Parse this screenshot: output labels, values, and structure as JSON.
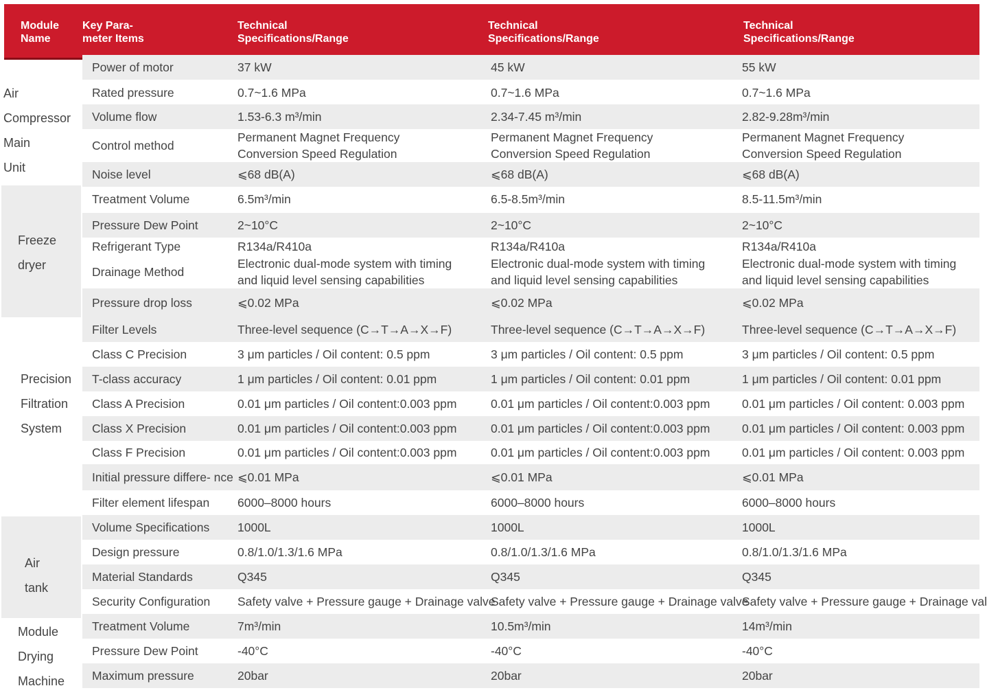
{
  "header": {
    "module": "Module\nName",
    "param": "Key Para-\nmeter Items",
    "spec1": "Technical\nSpecifications/Range",
    "spec2": "Technical\nSpecifications/Range",
    "spec3": "Technical\nSpecifications/Range"
  },
  "modules": [
    {
      "name": "Air\nCompressor\nMain\nUnit"
    },
    {
      "name": "Freeze\ndryer"
    },
    {
      "name": "Precision\nFiltration\nSystem"
    },
    {
      "name": "Air\ntank"
    },
    {
      "name": "Module\nDrying\nMachine"
    }
  ],
  "rows": [
    {
      "param": "Power of motor",
      "v1": "37 kW",
      "v2": "45 kW",
      "v3": "55 kW"
    },
    {
      "param": "Rated pressure",
      "v1": "0.7~1.6 MPa",
      "v2": "0.7~1.6 MPa",
      "v3": "0.7~1.6 MPa"
    },
    {
      "param": "Volume flow",
      "v1": "1.53-6.3 m³/min",
      "v2": "2.34-7.45 m³/min",
      "v3": "2.82-9.28m³/min"
    },
    {
      "param": "Control method",
      "v1": "Permanent Magnet Frequency\nConversion Speed Regulation",
      "v2": "Permanent Magnet Frequency\nConversion Speed Regulation",
      "v3": "Permanent Magnet Frequency\nConversion Speed Regulation"
    },
    {
      "param": "Noise level",
      "v1": "⩽68 dB(A)",
      "v2": "⩽68 dB(A)",
      "v3": "⩽68 dB(A)"
    },
    {
      "param": "Treatment Volume",
      "v1": "6.5m³/min",
      "v2": "6.5-8.5m³/min",
      "v3": "8.5-11.5m³/min"
    },
    {
      "param": "Pressure Dew Point",
      "v1": "2~10°C",
      "v2": "2~10°C",
      "v3": "2~10°C"
    },
    {
      "param": "Refrigerant Type",
      "v1": "R134a/R410a",
      "v2": "R134a/R410a",
      "v3": "R134a/R410a"
    },
    {
      "param": "Drainage Method",
      "v1": "Electronic dual-mode system with timing\nand liquid level sensing capabilities",
      "v2": "Electronic dual-mode system with timing\nand liquid level sensing capabilities",
      "v3": "Electronic dual-mode system with timing\nand liquid level sensing capabilities"
    },
    {
      "param": "Pressure drop loss",
      "v1": "⩽0.02 MPa",
      "v2": "⩽0.02 MPa",
      "v3": "⩽0.02 MPa"
    },
    {
      "param": "Filter Levels",
      "v1": "Three-level sequence (C→T→A→X→F)",
      "v2": "Three-level sequence (C→T→A→X→F)",
      "v3": "Three-level sequence (C→T→A→X→F)"
    },
    {
      "param": "Class C Precision",
      "v1": "3 μm particles / Oil content: 0.5 ppm",
      "v2": "3 μm particles / Oil content: 0.5 ppm",
      "v3": "3 μm particles / Oil content: 0.5 ppm"
    },
    {
      "param": "T-class accuracy",
      "v1": "1 μm particles / Oil content: 0.01 ppm",
      "v2": "1 μm particles / Oil content: 0.01 ppm",
      "v3": "1 μm particles / Oil content: 0.01 ppm"
    },
    {
      "param": "Class A Precision",
      "v1": "0.01  μm  particles  /  Oil  content:0.003 ppm",
      "v2": "0.01  μm  particles  /  Oil  content:0.003 ppm",
      "v3": "0.01 μm particles / Oil content: 0.003 ppm"
    },
    {
      "param": "Class X Precision",
      "v1": "0.01  μm  particles  /  Oil  content:0.003 ppm",
      "v2": "0.01  μm  particles  /  Oil  content:0.003 ppm",
      "v3": "0.01 μm particles / Oil content: 0.003 ppm"
    },
    {
      "param": "Class F Precision",
      "v1": "0.01  μm  particles  /  Oil  content:0.003 ppm",
      "v2": "0.01  μm  particles  /  Oil  content:0.003 ppm",
      "v3": "0.01 μm particles / Oil content: 0.003 ppm"
    },
    {
      "param": "Initial pressure differe- nce",
      "v1": "⩽0.01 MPa",
      "v2": "⩽0.01 MPa",
      "v3": "⩽0.01 MPa"
    },
    {
      "param": "Filter element lifespan",
      "v1": "6000–8000 hours",
      "v2": "6000–8000 hours",
      "v3": "6000–8000 hours"
    },
    {
      "param": "Volume Specifications",
      "v1": "1000L",
      "v2": "1000L",
      "v3": "1000L"
    },
    {
      "param": "Design pressure",
      "v1": "0.8/1.0/1.3/1.6 MPa",
      "v2": "0.8/1.0/1.3/1.6 MPa",
      "v3": "0.8/1.0/1.3/1.6 MPa"
    },
    {
      "param": "Material Standards",
      "v1": "Q345",
      "v2": "Q345",
      "v3": "Q345"
    },
    {
      "param": "Security Configuration",
      "v1": "Safety valve + Pressure gauge + Drainage valve",
      "v2": "Safety valve + Pressure gauge + Drainage valve",
      "v3": "Safety valve + Pressure gauge + Drainage valve"
    },
    {
      "param": "Treatment Volume",
      "v1": "7m³/min",
      "v2": "10.5m³/min",
      "v3": "14m³/min"
    },
    {
      "param": "Pressure Dew Point",
      "v1": "-40°C",
      "v2": "-40°C",
      "v3": "-40°C"
    },
    {
      "param": "Maximum pressure",
      "v1": "20bar",
      "v2": "20bar",
      "v3": "20bar"
    }
  ]
}
